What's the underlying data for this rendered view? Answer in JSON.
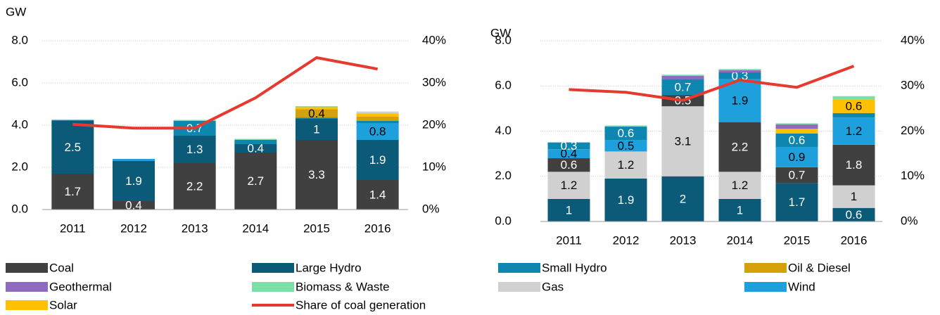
{
  "chart_data": [
    {
      "type": "bar",
      "stacked": true,
      "ylabel": "GW",
      "categories": [
        "2011",
        "2012",
        "2013",
        "2014",
        "2015",
        "2016"
      ],
      "ylim": [
        0,
        8
      ],
      "yticks": [
        {
          "value": 0,
          "label": "0.0"
        },
        {
          "value": 2,
          "label": "2.0"
        },
        {
          "value": 4,
          "label": "4.0"
        },
        {
          "value": 6,
          "label": "6.0"
        },
        {
          "value": 8,
          "label": "8.0"
        }
      ],
      "y2lim": [
        0,
        40
      ],
      "y2ticks": [
        {
          "value": 0,
          "label": "0%"
        },
        {
          "value": 10,
          "label": "10%"
        },
        {
          "value": 20,
          "label": "20%"
        },
        {
          "value": 30,
          "label": "30%"
        },
        {
          "value": 40,
          "label": "40%"
        }
      ],
      "grid": true,
      "series": [
        {
          "name": "Coal",
          "color": "#404040",
          "values": [
            1.7,
            0.4,
            2.2,
            2.7,
            3.3,
            1.4
          ]
        },
        {
          "name": "Large Hydro",
          "color": "#0b5a78",
          "values": [
            2.5,
            1.9,
            1.3,
            0.4,
            1.0,
            1.9
          ]
        },
        {
          "name": "Small Hydro",
          "color": "#0e87b0",
          "values": [
            0.05,
            0,
            0.7,
            0.2,
            0.05,
            0.1
          ]
        },
        {
          "name": "Oil & Diesel",
          "color": "#d4a10a",
          "values": [
            0,
            0,
            0,
            0,
            0.4,
            0.2
          ]
        },
        {
          "name": "Geothermal",
          "color": "#8e6bbf",
          "values": [
            0,
            0,
            0,
            0,
            0,
            0
          ]
        },
        {
          "name": "Biomass & Waste",
          "color": "#7ddfa8",
          "values": [
            0,
            0,
            0.05,
            0.05,
            0.05,
            0
          ]
        },
        {
          "name": "Gas",
          "color": "#d0d0d0",
          "values": [
            0,
            0,
            0,
            0,
            0,
            0.1
          ]
        },
        {
          "name": "Wind",
          "color": "#1ea0dc",
          "values": [
            0,
            0.1,
            0,
            0,
            0,
            0.8
          ]
        },
        {
          "name": "Solar",
          "color": "#ffc000",
          "values": [
            0,
            0,
            0,
            0,
            0.1,
            0.15
          ]
        },
        {
          "name": "Share of coal generation",
          "type": "line",
          "axis": "y2",
          "color": "#e8392f",
          "values": [
            20.2,
            19.3,
            19.3,
            26.5,
            36,
            33.3
          ]
        }
      ]
    },
    {
      "type": "bar",
      "stacked": true,
      "ylabel": "GW",
      "categories": [
        "2011",
        "2012",
        "2013",
        "2014",
        "2015",
        "2016"
      ],
      "ylim": [
        0,
        8
      ],
      "yticks": [
        {
          "value": 0,
          "label": "0.0"
        },
        {
          "value": 2,
          "label": "2.0"
        },
        {
          "value": 4,
          "label": "4.0"
        },
        {
          "value": 6,
          "label": "6.0"
        },
        {
          "value": 8,
          "label": "8.0"
        }
      ],
      "y2lim": [
        0,
        40
      ],
      "y2ticks": [
        {
          "value": 0,
          "label": "0%"
        },
        {
          "value": 10,
          "label": "10%"
        },
        {
          "value": 20,
          "label": "20%"
        },
        {
          "value": 30,
          "label": "30%"
        },
        {
          "value": 40,
          "label": "40%"
        }
      ],
      "grid": true,
      "series": [
        {
          "name": "Coal",
          "color": "#404040",
          "values": [
            0.6,
            0,
            0.5,
            2.2,
            0.7,
            1.8
          ]
        },
        {
          "name": "Large Hydro",
          "color": "#0b5a78",
          "values": [
            1.0,
            1.9,
            2.0,
            1.0,
            1.7,
            0.6
          ]
        },
        {
          "name": "Small Hydro",
          "color": "#0e87b0",
          "values": [
            0.3,
            0.6,
            0.7,
            0.3,
            0.6,
            0.2
          ]
        },
        {
          "name": "Oil & Diesel",
          "color": "#d4a10a",
          "values": [
            0,
            0,
            0,
            0,
            0,
            0
          ]
        },
        {
          "name": "Geothermal",
          "color": "#8e6bbf",
          "values": [
            0,
            0,
            0.15,
            0.1,
            0.2,
            0
          ]
        },
        {
          "name": "Biomass & Waste",
          "color": "#7ddfa8",
          "values": [
            0,
            0.05,
            0.05,
            0.05,
            0.05,
            0.15
          ]
        },
        {
          "name": "Gas",
          "color": "#d0d0d0",
          "values": [
            1.2,
            1.2,
            3.1,
            1.2,
            0,
            1.0
          ]
        },
        {
          "name": "Wind",
          "color": "#1ea0dc",
          "values": [
            0.4,
            0.5,
            0,
            1.9,
            0.9,
            1.2
          ]
        },
        {
          "name": "Solar",
          "color": "#ffc000",
          "values": [
            0,
            0,
            0,
            0,
            0.2,
            0.6
          ]
        },
        {
          "name": "Share of coal generation",
          "type": "line",
          "axis": "y2",
          "color": "#e8392f",
          "values": [
            29.2,
            28.6,
            26.8,
            31.3,
            29.7,
            34.4
          ]
        }
      ]
    }
  ]
}
